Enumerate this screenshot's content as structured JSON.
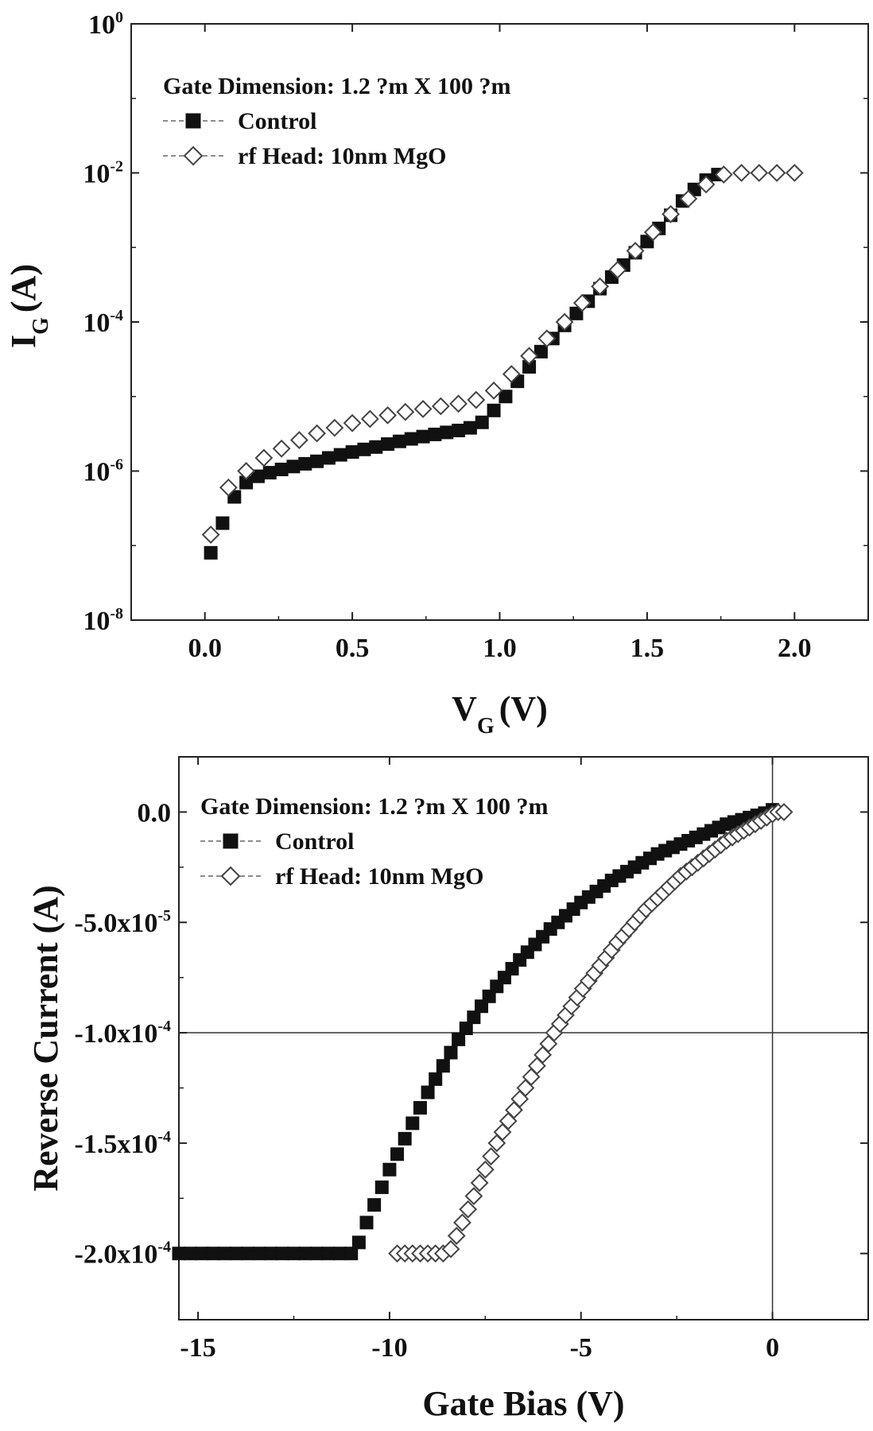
{
  "chart_data": [
    {
      "type": "scatter",
      "yscale": "log",
      "xlabel": "V",
      "xlabel_sub": "G",
      "xlabel_unit": "(V)",
      "ylabel": "I",
      "ylabel_sub": "G",
      "ylabel_unit": "(A)",
      "xlim": [
        -0.25,
        2.25
      ],
      "ylim": [
        1e-08,
        1
      ],
      "xticks": [
        0.0,
        0.5,
        1.0,
        1.5,
        2.0
      ],
      "xtick_labels": [
        "0.0",
        "0.5",
        "1.0",
        "1.5",
        "2.0"
      ],
      "yticks": [
        1e-08,
        1e-06,
        0.0001,
        0.01,
        1
      ],
      "ytick_labels": [
        {
          "base": "10",
          "exp": "-8"
        },
        {
          "base": "10",
          "exp": "-6"
        },
        {
          "base": "10",
          "exp": "-4"
        },
        {
          "base": "10",
          "exp": "-2"
        },
        {
          "base": "10",
          "exp": "0"
        }
      ],
      "legend_title": "Gate Dimension: 1.2  ?m X 100  ?m",
      "legend_position": "top-left",
      "series": [
        {
          "name": "Control",
          "marker": "filled-square",
          "x": [
            0.02,
            0.06,
            0.1,
            0.14,
            0.18,
            0.22,
            0.26,
            0.3,
            0.34,
            0.38,
            0.42,
            0.46,
            0.5,
            0.54,
            0.58,
            0.62,
            0.66,
            0.7,
            0.74,
            0.78,
            0.82,
            0.86,
            0.9,
            0.94,
            0.98,
            1.02,
            1.06,
            1.1,
            1.14,
            1.18,
            1.22,
            1.26,
            1.3,
            1.34,
            1.38,
            1.42,
            1.46,
            1.5,
            1.54,
            1.58,
            1.62,
            1.66,
            1.7,
            1.74
          ],
          "y": [
            8e-08,
            2e-07,
            4.5e-07,
            7e-07,
            8.5e-07,
            9.5e-07,
            1.05e-06,
            1.15e-06,
            1.25e-06,
            1.35e-06,
            1.5e-06,
            1.65e-06,
            1.8e-06,
            1.95e-06,
            2.1e-06,
            2.3e-06,
            2.5e-06,
            2.7e-06,
            2.9e-06,
            3.1e-06,
            3.3e-06,
            3.5e-06,
            3.8e-06,
            4.5e-06,
            6.5e-06,
            1e-05,
            1.6e-05,
            2.5e-05,
            4e-05,
            6e-05,
            9e-05,
            0.00013,
            0.00019,
            0.00028,
            0.0004,
            0.00058,
            0.00085,
            0.0012,
            0.0018,
            0.0027,
            0.0042,
            0.006,
            0.008,
            0.0095
          ]
        },
        {
          "name": "rf Head: 10nm MgO",
          "marker": "open-diamond",
          "x": [
            0.02,
            0.08,
            0.14,
            0.2,
            0.26,
            0.32,
            0.38,
            0.44,
            0.5,
            0.56,
            0.62,
            0.68,
            0.74,
            0.8,
            0.86,
            0.92,
            0.98,
            1.04,
            1.1,
            1.16,
            1.22,
            1.28,
            1.34,
            1.4,
            1.46,
            1.52,
            1.58,
            1.64,
            1.7,
            1.76,
            1.82,
            1.88,
            1.94,
            2.0
          ],
          "y": [
            1.4e-07,
            6e-07,
            1e-06,
            1.5e-06,
            2e-06,
            2.6e-06,
            3.2e-06,
            3.8e-06,
            4.4e-06,
            5e-06,
            5.6e-06,
            6.2e-06,
            6.8e-06,
            7.4e-06,
            8e-06,
            9e-06,
            1.2e-05,
            2e-05,
            3.5e-05,
            6e-05,
            0.0001,
            0.00018,
            0.0003,
            0.0005,
            0.0009,
            0.0016,
            0.0028,
            0.0045,
            0.007,
            0.0095,
            0.01,
            0.01,
            0.01,
            0.01
          ]
        }
      ]
    },
    {
      "type": "scatter",
      "xlabel": "Gate Bias (V)",
      "ylabel": "Reverse Current (A)",
      "xlim": [
        -15.5,
        2.5
      ],
      "ylim": [
        -0.00023,
        2.5e-05
      ],
      "xticks": [
        -15,
        -10,
        -5,
        0
      ],
      "xtick_labels": [
        "-15",
        "-10",
        "-5",
        "0"
      ],
      "yticks": [
        0.0,
        -5e-05,
        -0.0001,
        -0.00015,
        -0.0002
      ],
      "ytick_labels": [
        {
          "base": "0.0",
          "exp": ""
        },
        {
          "base": "-5.0x10",
          "exp": "-5"
        },
        {
          "base": "-1.0x10",
          "exp": "-4"
        },
        {
          "base": "-1.5x10",
          "exp": "-4"
        },
        {
          "base": "-2.0x10",
          "exp": "-4"
        }
      ],
      "reference_lines": {
        "x": 0,
        "y": -0.0001
      },
      "legend_title": "Gate Dimension: 1.2    ?m X 100  ?m",
      "legend_position": "top-left",
      "series": [
        {
          "name": "Control",
          "marker": "filled-square",
          "x": [
            -15.5,
            -15.2,
            -14.9,
            -14.6,
            -14.3,
            -14.0,
            -13.7,
            -13.4,
            -13.1,
            -12.8,
            -12.5,
            -12.2,
            -11.9,
            -11.6,
            -11.3,
            -11.0,
            -10.8,
            -10.6,
            -10.4,
            -10.2,
            -10.0,
            -9.8,
            -9.6,
            -9.4,
            -9.2,
            -9.0,
            -8.8,
            -8.6,
            -8.4,
            -8.2,
            -8.0,
            -7.8,
            -7.6,
            -7.4,
            -7.2,
            -7.0,
            -6.8,
            -6.6,
            -6.4,
            -6.2,
            -6.0,
            -5.8,
            -5.6,
            -5.4,
            -5.2,
            -5.0,
            -4.8,
            -4.6,
            -4.4,
            -4.2,
            -4.0,
            -3.8,
            -3.6,
            -3.4,
            -3.2,
            -3.0,
            -2.8,
            -2.6,
            -2.4,
            -2.2,
            -2.0,
            -1.8,
            -1.6,
            -1.4,
            -1.2,
            -1.0,
            -0.8,
            -0.6,
            -0.4,
            -0.2,
            0.0
          ],
          "y": [
            -0.0002,
            -0.0002,
            -0.0002,
            -0.0002,
            -0.0002,
            -0.0002,
            -0.0002,
            -0.0002,
            -0.0002,
            -0.0002,
            -0.0002,
            -0.0002,
            -0.0002,
            -0.0002,
            -0.0002,
            -0.0002,
            -0.000195,
            -0.000186,
            -0.000178,
            -0.00017,
            -0.000162,
            -0.000155,
            -0.000148,
            -0.000141,
            -0.000134,
            -0.000127,
            -0.000121,
            -0.000115,
            -0.000109,
            -0.000103,
            -9.8e-05,
            -9.3e-05,
            -8.8e-05,
            -8.35e-05,
            -7.9e-05,
            -7.5e-05,
            -7.1e-05,
            -6.7e-05,
            -6.35e-05,
            -6e-05,
            -5.65e-05,
            -5.3e-05,
            -5e-05,
            -4.7e-05,
            -4.4e-05,
            -4.1e-05,
            -3.85e-05,
            -3.6e-05,
            -3.35e-05,
            -3.1e-05,
            -2.9e-05,
            -2.7e-05,
            -2.5e-05,
            -2.3e-05,
            -2.1e-05,
            -1.9e-05,
            -1.75e-05,
            -1.6e-05,
            -1.45e-05,
            -1.3e-05,
            -1.15e-05,
            -1e-05,
            -8.5e-06,
            -7e-06,
            -5.5e-06,
            -4.5e-06,
            -3.5e-06,
            -2.5e-06,
            -1.5e-06,
            -5e-07,
            1e-06
          ]
        },
        {
          "name": "rf Head: 10nm MgO",
          "marker": "open-diamond",
          "x": [
            -9.8,
            -9.6,
            -9.4,
            -9.2,
            -9.0,
            -8.8,
            -8.6,
            -8.4,
            -8.25,
            -8.1,
            -7.95,
            -7.8,
            -7.65,
            -7.5,
            -7.35,
            -7.2,
            -7.05,
            -6.9,
            -6.75,
            -6.6,
            -6.45,
            -6.3,
            -6.15,
            -6.0,
            -5.85,
            -5.7,
            -5.55,
            -5.4,
            -5.25,
            -5.1,
            -4.95,
            -4.8,
            -4.65,
            -4.5,
            -4.35,
            -4.2,
            -4.05,
            -3.9,
            -3.75,
            -3.6,
            -3.45,
            -3.3,
            -3.15,
            -3.0,
            -2.85,
            -2.7,
            -2.55,
            -2.4,
            -2.25,
            -2.1,
            -1.95,
            -1.8,
            -1.65,
            -1.5,
            -1.35,
            -1.2,
            -1.05,
            -0.9,
            -0.75,
            -0.6,
            -0.45,
            -0.3,
            -0.15,
            0.0,
            0.15,
            0.3
          ],
          "y": [
            -0.0002,
            -0.0002,
            -0.0002,
            -0.0002,
            -0.0002,
            -0.0002,
            -0.0002,
            -0.000198,
            -0.000192,
            -0.000186,
            -0.00018,
            -0.000174,
            -0.000168,
            -0.000162,
            -0.000156,
            -0.00015,
            -0.000145,
            -0.00014,
            -0.000135,
            -0.00013,
            -0.000125,
            -0.00012,
            -0.000115,
            -0.00011,
            -0.000105,
            -0.0001,
            -9.6e-05,
            -9.2e-05,
            -8.8e-05,
            -8.4e-05,
            -8e-05,
            -7.65e-05,
            -7.3e-05,
            -6.95e-05,
            -6.6e-05,
            -6.25e-05,
            -5.9e-05,
            -5.6e-05,
            -5.3e-05,
            -5e-05,
            -4.7e-05,
            -4.4e-05,
            -4.15e-05,
            -3.9e-05,
            -3.65e-05,
            -3.4e-05,
            -3.15e-05,
            -2.9e-05,
            -2.7e-05,
            -2.5e-05,
            -2.3e-05,
            -2.1e-05,
            -1.9e-05,
            -1.7e-05,
            -1.5e-05,
            -1.3e-05,
            -1.15e-05,
            -1e-05,
            -8.5e-06,
            -7e-06,
            -5.5e-06,
            -4e-06,
            -2.5e-06,
            -1e-06,
            0.0,
            0.0
          ]
        }
      ]
    }
  ]
}
